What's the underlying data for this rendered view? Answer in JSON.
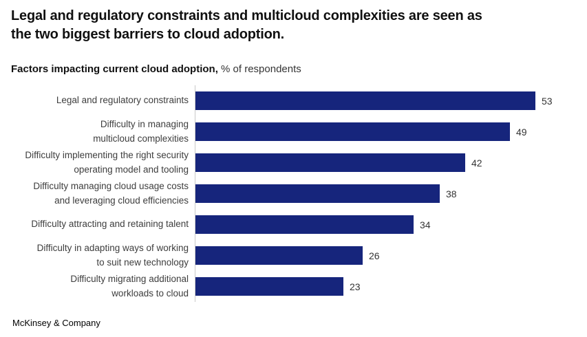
{
  "header": {
    "title": "Legal and regulatory constraints and multicloud complexities are seen as\nthe two biggest barriers to cloud adoption."
  },
  "subtitle": {
    "bold": "Factors impacting current cloud adoption,",
    "regular": "% of respondents"
  },
  "chart_data": {
    "type": "bar",
    "orientation": "horizontal",
    "title": "Factors impacting current cloud adoption, % of respondents",
    "categories": [
      "Legal and regulatory constraints",
      "Difficulty in managing\nmulticloud complexities",
      "Difficulty implementing the right security\noperating model and tooling",
      "Difficulty managing cloud usage costs\nand leveraging cloud efficiencies",
      "Difficulty attracting and retaining talent",
      "Difficulty in adapting ways of working\nto suit new technology",
      "Difficulty migrating additional\nworkloads to cloud"
    ],
    "values": [
      53,
      49,
      42,
      38,
      34,
      26,
      23
    ],
    "unit": "% of respondents",
    "xlim": [
      0,
      60
    ],
    "grid": false,
    "legend": "none",
    "value_labels": true,
    "bar_color": "#16257c",
    "axis_line_color": "#c9c9c9",
    "label_text_color": "#3d3d3d",
    "value_text_color": "#333333"
  },
  "footer": {
    "brand": "McKinsey & Company"
  }
}
